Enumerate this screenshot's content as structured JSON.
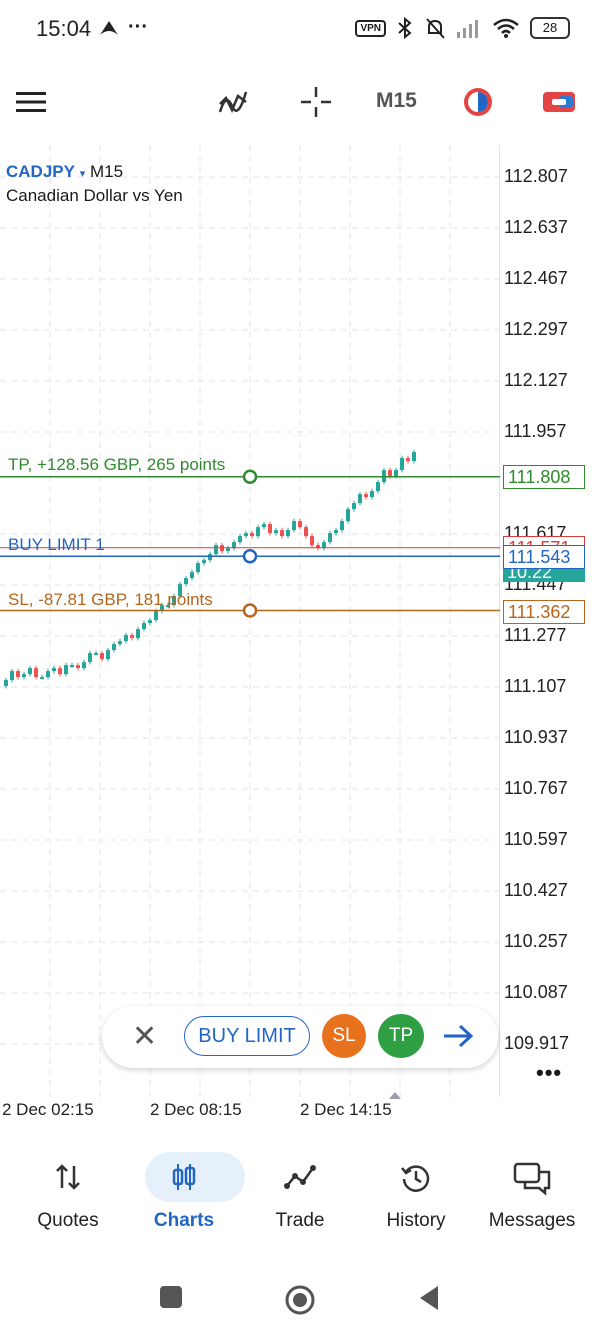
{
  "status_bar": {
    "time": "15:04",
    "more": "···",
    "vpn": "VPN",
    "battery": "28",
    "icons": [
      "notification-app-icon",
      "bluetooth-icon",
      "mute-icon",
      "signal-icon",
      "wifi-icon"
    ]
  },
  "toolbar": {
    "timeframe": "M15",
    "icons": [
      "menu-icon",
      "indicators-icon",
      "crosshair-icon",
      "timeframe-cycle-icon",
      "trade-icon"
    ]
  },
  "chart": {
    "symbol": "CADJPY",
    "caret": "▾",
    "timeframe": "M15",
    "description": "Canadian Dollar vs Yen",
    "price_ticks": [
      "112.807",
      "112.637",
      "112.467",
      "112.297",
      "112.127",
      "111.957",
      "111.617",
      "111.447",
      "111.277",
      "111.107",
      "110.937",
      "110.767",
      "110.597",
      "110.427",
      "110.257",
      "110.087",
      "109.917"
    ],
    "time_ticks": [
      "2 Dec 02:15",
      "2 Dec 08:15",
      "2 Dec 14:15"
    ],
    "order_lines": {
      "tp": {
        "label": "TP, +128.56 GBP, 265 points",
        "price": "111.808",
        "color": "#2e8b2e"
      },
      "buy_limit": {
        "label": "BUY LIMIT 1",
        "price": "111.543",
        "color": "#2266c4"
      },
      "sl": {
        "label": "SL, -87.81 GBP, 181 points",
        "price": "111.362",
        "color": "#b5651d"
      },
      "current_bid": {
        "price": "111.571",
        "color": "#d93b3b"
      },
      "spread_tag": {
        "text": "10.22",
        "color": "#26a69a"
      }
    },
    "colors": {
      "bull": "#26a69a",
      "bear": "#ef5350",
      "grid": "#e3e6ea"
    }
  },
  "order_bar": {
    "close": "✕",
    "buy_limit": "BUY LIMIT",
    "sl": "SL",
    "tp": "TP",
    "more": "•••"
  },
  "bottom_nav": {
    "items": [
      {
        "label": "Quotes",
        "icon": "quotes-icon"
      },
      {
        "label": "Charts",
        "icon": "charts-icon",
        "active": true
      },
      {
        "label": "Trade",
        "icon": "trade-icon"
      },
      {
        "label": "History",
        "icon": "history-icon"
      },
      {
        "label": "Messages",
        "icon": "messages-icon"
      }
    ]
  },
  "system_nav": [
    "recents-icon",
    "home-icon",
    "back-icon"
  ]
}
